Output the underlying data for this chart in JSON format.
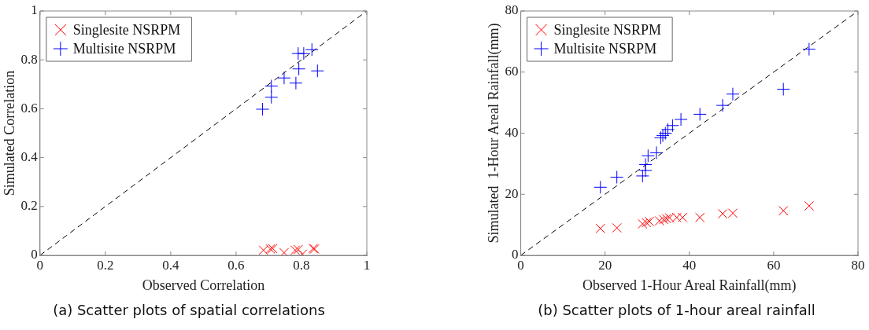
{
  "chart_data": [
    {
      "type": "scatter",
      "xlabel": "Observed Correlation",
      "ylabel": "Simulated Correlation",
      "xlim": [
        0,
        1
      ],
      "ylim": [
        0,
        1
      ],
      "xticks": [
        0,
        0.2,
        0.4,
        0.6,
        0.8,
        1
      ],
      "yticks": [
        0,
        0.2,
        0.4,
        0.6,
        0.8,
        1
      ],
      "legend": "top left",
      "annotations": [
        "(a) Scatter plots of spatial correlations"
      ],
      "series": [
        {
          "name": "Singlesite NSRPM",
          "color": "#ff0000",
          "marker": "x",
          "x": [
            0.684,
            0.705,
            0.712,
            0.747,
            0.781,
            0.79,
            0.803,
            0.836,
            0.84
          ],
          "values": [
            0.021,
            0.026,
            0.028,
            0.011,
            0.021,
            0.024,
            0.005,
            0.028,
            0.026
          ]
        },
        {
          "name": "Multisite NSRPM",
          "color": "#0000ff",
          "marker": "cross",
          "x": [
            0.681,
            0.708,
            0.708,
            0.747,
            0.783,
            0.792,
            0.79,
            0.807,
            0.832,
            0.849
          ],
          "values": [
            0.598,
            0.647,
            0.693,
            0.726,
            0.705,
            0.763,
            0.826,
            0.826,
            0.842,
            0.755
          ]
        },
        {
          "type": "line",
          "color": "#000000",
          "line_style": "dashed",
          "x": [
            0,
            1
          ],
          "values": [
            0,
            1
          ]
        }
      ]
    },
    {
      "type": "scatter",
      "xlabel": "Observed 1-Hour Areal Rainfall(mm)",
      "ylabel": "Simulated  1-Hour Areal Rainfall(mm)",
      "xlim": [
        0,
        80
      ],
      "ylim": [
        0,
        80
      ],
      "xticks": [
        0,
        20,
        40,
        60,
        80
      ],
      "yticks": [
        0,
        20,
        40,
        60,
        80
      ],
      "legend": "top left",
      "annotations": [
        "(b) Scatter plots of 1-hour areal rainfall"
      ],
      "series": [
        {
          "name": "Singlesite NSRPM",
          "color": "#ff0000",
          "marker": "x",
          "x": [
            18.9,
            22.8,
            28.9,
            29.8,
            30.5,
            32.9,
            33.9,
            34.6,
            35.3,
            37.0,
            38.4,
            42.5,
            47.9,
            50.3,
            62.3,
            68.4
          ],
          "values": [
            8.8,
            9.0,
            10.3,
            10.7,
            11.1,
            11.3,
            11.7,
            12.0,
            12.3,
            12.4,
            12.4,
            12.4,
            13.6,
            13.8,
            14.6,
            16.2
          ]
        },
        {
          "name": "Multisite NSRPM",
          "color": "#0000ff",
          "marker": "cross",
          "x": [
            18.9,
            22.8,
            28.9,
            29.6,
            29.6,
            30.2,
            32.2,
            33.2,
            33.7,
            34.3,
            34.9,
            36.0,
            38.0,
            42.5,
            47.9,
            50.3,
            62.3,
            68.4
          ],
          "values": [
            22.3,
            25.6,
            26.0,
            27.8,
            29.7,
            32.6,
            33.6,
            38.5,
            39.2,
            40.0,
            41.2,
            42.5,
            44.5,
            46.2,
            49.1,
            52.8,
            54.4,
            67.5
          ]
        },
        {
          "type": "line",
          "color": "#000000",
          "line_style": "dashed",
          "x": [
            0,
            80
          ],
          "values": [
            0,
            80
          ]
        }
      ]
    }
  ]
}
